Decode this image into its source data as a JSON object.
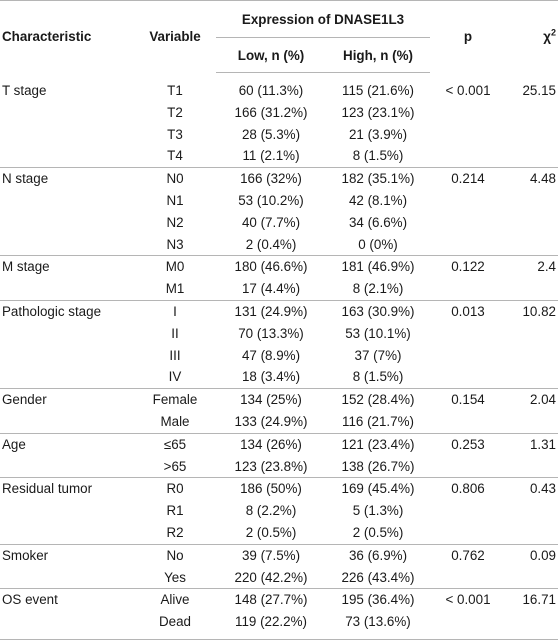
{
  "headers": {
    "characteristic": "Characteristic",
    "variable": "Variable",
    "expression": "Expression of DNASE1L3",
    "low": "Low, n (%)",
    "high": "High, n (%)",
    "p": "p",
    "chi_base": "χ",
    "chi_sup": "2"
  },
  "groups": [
    {
      "name": "T stage",
      "p": "< 0.001",
      "chi2": "25.15",
      "rows": [
        {
          "var": "T1",
          "low": "60 (11.3%)",
          "high": "115 (21.6%)"
        },
        {
          "var": "T2",
          "low": "166 (31.2%)",
          "high": "123 (23.1%)"
        },
        {
          "var": "T3",
          "low": "28 (5.3%)",
          "high": "21 (3.9%)"
        },
        {
          "var": "T4",
          "low": "11 (2.1%)",
          "high": "8 (1.5%)"
        }
      ]
    },
    {
      "name": "N stage",
      "p": "0.214",
      "chi2": "4.48",
      "rows": [
        {
          "var": "N0",
          "low": "166 (32%)",
          "high": "182 (35.1%)"
        },
        {
          "var": "N1",
          "low": "53 (10.2%)",
          "high": "42 (8.1%)"
        },
        {
          "var": "N2",
          "low": "40 (7.7%)",
          "high": "34 (6.6%)"
        },
        {
          "var": "N3",
          "low": "2 (0.4%)",
          "high": "0 (0%)"
        }
      ]
    },
    {
      "name": "M stage",
      "p": "0.122",
      "chi2": "2.4",
      "rows": [
        {
          "var": "M0",
          "low": "180 (46.6%)",
          "high": "181 (46.9%)"
        },
        {
          "var": "M1",
          "low": "17 (4.4%)",
          "high": "8 (2.1%)"
        }
      ]
    },
    {
      "name": "Pathologic stage",
      "p": "0.013",
      "chi2": "10.82",
      "rows": [
        {
          "var": "I",
          "low": "131 (24.9%)",
          "high": "163 (30.9%)"
        },
        {
          "var": "II",
          "low": "70 (13.3%)",
          "high": "53 (10.1%)"
        },
        {
          "var": "III",
          "low": "47 (8.9%)",
          "high": "37 (7%)"
        },
        {
          "var": "IV",
          "low": "18 (3.4%)",
          "high": "8 (1.5%)"
        }
      ]
    },
    {
      "name": "Gender",
      "p": "0.154",
      "chi2": "2.04",
      "rows": [
        {
          "var": "Female",
          "low": "134 (25%)",
          "high": "152 (28.4%)"
        },
        {
          "var": "Male",
          "low": "133 (24.9%)",
          "high": "116 (21.7%)"
        }
      ]
    },
    {
      "name": "Age",
      "p": "0.253",
      "chi2": "1.31",
      "rows": [
        {
          "var": "≤65",
          "low": "134 (26%)",
          "high": "121 (23.4%)"
        },
        {
          "var": ">65",
          "low": "123 (23.8%)",
          "high": "138 (26.7%)"
        }
      ]
    },
    {
      "name": "Residual tumor",
      "p": "0.806",
      "chi2": "0.43",
      "rows": [
        {
          "var": "R0",
          "low": "186 (50%)",
          "high": "169 (45.4%)"
        },
        {
          "var": "R1",
          "low": "8 (2.2%)",
          "high": "5 (1.3%)"
        },
        {
          "var": "R2",
          "low": "2 (0.5%)",
          "high": "2 (0.5%)"
        }
      ]
    },
    {
      "name": "Smoker",
      "p": "0.762",
      "chi2": "0.09",
      "rows": [
        {
          "var": "No",
          "low": "39 (7.5%)",
          "high": "36 (6.9%)"
        },
        {
          "var": "Yes",
          "low": "220 (42.2%)",
          "high": "226 (43.4%)"
        }
      ]
    },
    {
      "name": "OS event",
      "p": "< 0.001",
      "chi2": "16.71",
      "rows": [
        {
          "var": "Alive",
          "low": "148 (27.7%)",
          "high": "195 (36.4%)"
        },
        {
          "var": "Dead",
          "low": "119 (22.2%)",
          "high": "73 (13.6%)"
        }
      ]
    }
  ]
}
